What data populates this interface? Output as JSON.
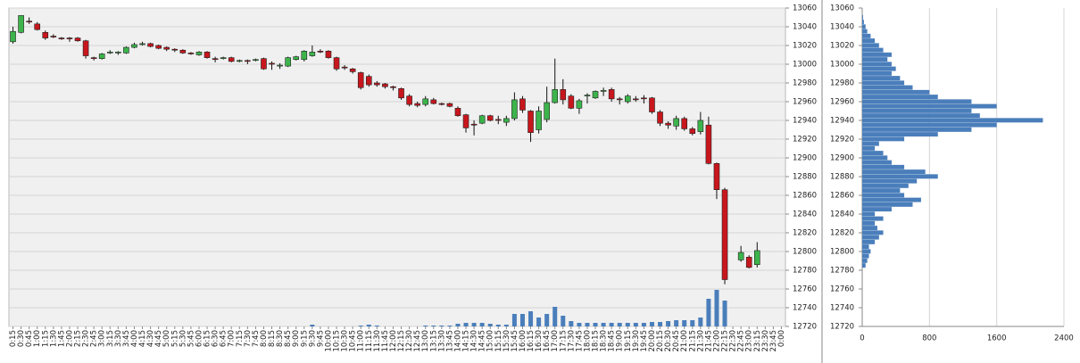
{
  "chart_data": [
    {
      "type": "candlestick",
      "categories": [
        "0:15",
        "0:30",
        "0:45",
        "1:00",
        "1:15",
        "1:30",
        "1:45",
        "2:00",
        "2:15",
        "2:30",
        "2:45",
        "3:00",
        "3:15",
        "3:30",
        "3:45",
        "4:00",
        "4:15",
        "4:30",
        "4:45",
        "5:00",
        "5:15",
        "5:30",
        "5:45",
        "6:00",
        "6:15",
        "6:30",
        "6:45",
        "7:00",
        "7:15",
        "7:30",
        "7:45",
        "8:00",
        "8:15",
        "8:30",
        "8:45",
        "9:00",
        "9:15",
        "9:30",
        "9:45",
        "10:00",
        "10:15",
        "10:30",
        "10:45",
        "11:00",
        "11:15",
        "11:30",
        "11:45",
        "12:00",
        "12:15",
        "12:30",
        "12:45",
        "13:00",
        "13:15",
        "13:30",
        "13:45",
        "14:00",
        "14:15",
        "14:30",
        "14:45",
        "15:00",
        "15:15",
        "15:30",
        "15:45",
        "16:00",
        "16:15",
        "16:30",
        "16:45",
        "17:00",
        "17:15",
        "17:30",
        "17:45",
        "18:00",
        "18:15",
        "18:30",
        "18:45",
        "19:00",
        "19:15",
        "19:30",
        "19:45",
        "20:00",
        "20:15",
        "20:30",
        "20:45",
        "21:00",
        "21:15",
        "21:30",
        "21:45",
        "22:00",
        "22:15",
        "22:30",
        "22:45",
        "23:00",
        "23:15",
        "23:30",
        "23:45",
        "0:00"
      ],
      "open": [
        13024,
        13034,
        13046,
        13043,
        13034,
        13030,
        13028,
        13028,
        13028,
        13025,
        13007,
        13006,
        13012,
        13012,
        13012,
        13018,
        13021,
        13022,
        13020,
        13018,
        13016,
        13015,
        13012,
        13010,
        13013,
        13006,
        13006,
        13007,
        13003,
        13004,
        13004,
        13006,
        13001,
        12998,
        12998,
        13005,
        13005,
        13009,
        13014,
        13014,
        13007,
        12997,
        12995,
        12991,
        12987,
        12980,
        12979,
        12976,
        12974,
        12966,
        12958,
        12957,
        12962,
        12958,
        12958,
        12953,
        12946,
        12936,
        12937,
        12945,
        12941,
        12938,
        12942,
        12963,
        12950,
        12930,
        12941,
        12959,
        12973,
        12966,
        12953,
        12966,
        12964,
        12971,
        12973,
        12963,
        12960,
        12963,
        12964,
        12964,
        12949,
        12937,
        12934,
        12942,
        12931,
        12928,
        12935,
        12894,
        12866,
        null,
        12791,
        12794,
        12786,
        null,
        null,
        null
      ],
      "high": [
        13040,
        13052,
        13050,
        13045,
        13036,
        13032,
        13029,
        13029,
        13029,
        13026,
        13008,
        13012,
        13015,
        13014,
        13019,
        13023,
        13024,
        13023,
        13021,
        13019,
        13017,
        13016,
        13013,
        13014,
        13014,
        13008,
        13008,
        13008,
        13005,
        13005,
        13006,
        13007,
        13003,
        13001,
        13008,
        13009,
        13015,
        13020,
        13016,
        13015,
        13008,
        12999,
        12996,
        12992,
        12989,
        12982,
        12980,
        12977,
        12975,
        12968,
        12960,
        12966,
        12964,
        12959,
        12959,
        12955,
        12947,
        12940,
        12946,
        12946,
        12945,
        12945,
        12970,
        12966,
        12951,
        12955,
        12976,
        13006,
        12984,
        12968,
        12963,
        12969,
        12972,
        12975,
        12975,
        12965,
        12968,
        12966,
        12967,
        12965,
        12951,
        12939,
        12945,
        12944,
        12933,
        12949,
        12944,
        12895,
        12868,
        null,
        12806,
        12796,
        12810,
        null,
        null,
        null
      ],
      "low": [
        13022,
        13033,
        13043,
        13036,
        13026,
        13028,
        13026,
        13024,
        13024,
        13006,
        13004,
        13005,
        13011,
        13010,
        13011,
        13017,
        13020,
        13018,
        13016,
        13014,
        13013,
        13011,
        13010,
        13009,
        13006,
        13002,
        13005,
        13002,
        13002,
        13000,
        13003,
        12994,
        12994,
        12995,
        12997,
        13004,
        13003,
        13008,
        13012,
        13006,
        12993,
        12994,
        12990,
        12973,
        12976,
        12976,
        12974,
        12972,
        12962,
        12955,
        12954,
        12955,
        12957,
        12956,
        12954,
        12944,
        12927,
        12924,
        12936,
        12939,
        12936,
        12934,
        12940,
        12948,
        12917,
        12926,
        12938,
        12958,
        12957,
        12952,
        12947,
        12958,
        12963,
        12966,
        12960,
        12957,
        12958,
        12960,
        12958,
        12947,
        12934,
        12931,
        12930,
        12929,
        12924,
        12925,
        12893,
        12856,
        12765,
        null,
        12789,
        12782,
        12783,
        null,
        null,
        null
      ],
      "close": [
        13035,
        13052,
        13045,
        13037,
        13028,
        13029,
        13027,
        13027,
        13025,
        13009,
        13006,
        13011,
        13013,
        13013,
        13018,
        13021,
        13022,
        13019,
        13017,
        13016,
        13015,
        13012,
        13011,
        13013,
        13007,
        13005,
        13007,
        13003,
        13004,
        13003,
        13005,
        12995,
        13000,
        12999,
        13007,
        13008,
        13014,
        13013,
        13013,
        13007,
        12995,
        12996,
        12992,
        12975,
        12978,
        12978,
        12976,
        12975,
        12964,
        12957,
        12956,
        12963,
        12958,
        12957,
        12955,
        12945,
        12932,
        12935,
        12945,
        12940,
        12940,
        12942,
        12962,
        12951,
        12927,
        12950,
        12959,
        12973,
        12962,
        12953,
        12961,
        12967,
        12971,
        12972,
        12963,
        12962,
        12966,
        12962,
        12963,
        12949,
        12937,
        12935,
        12942,
        12931,
        12926,
        12940,
        12894,
        12866,
        12770,
        null,
        12799,
        12783,
        12801,
        null,
        null,
        null
      ],
      "volume": [
        0,
        0,
        0,
        0,
        0,
        0,
        0,
        0,
        0,
        0,
        0,
        0,
        0,
        0,
        0,
        0,
        0,
        0,
        0,
        0,
        0,
        0,
        0,
        0,
        0,
        0,
        0,
        0,
        0,
        0,
        0,
        0,
        0,
        0,
        0,
        0,
        0,
        2,
        0,
        0,
        0,
        0,
        0,
        1,
        2,
        1,
        0,
        0,
        0,
        0,
        0,
        1,
        1,
        1,
        1,
        3,
        4,
        4,
        4,
        3,
        2,
        2,
        14,
        14,
        17,
        10,
        14,
        22,
        12,
        6,
        4,
        4,
        4,
        4,
        4,
        4,
        4,
        4,
        4,
        5,
        5,
        6,
        7,
        7,
        7,
        10,
        31,
        41,
        29,
        null,
        0,
        0,
        0,
        null,
        null,
        null
      ],
      "up_color": "#3cb44b",
      "down_color": "#c8161d",
      "volume_color": "#4a7ebb",
      "ylim": [
        12720,
        13060
      ],
      "yticks": [
        12720,
        12740,
        12760,
        12780,
        12800,
        12820,
        12840,
        12860,
        12880,
        12900,
        12920,
        12940,
        12960,
        12980,
        13000,
        13020,
        13040,
        13060
      ],
      "grid": true
    },
    {
      "type": "barh",
      "y": [
        12785,
        12790,
        12795,
        12800,
        12805,
        12810,
        12815,
        12820,
        12825,
        12830,
        12835,
        12840,
        12845,
        12850,
        12855,
        12860,
        12865,
        12870,
        12875,
        12880,
        12885,
        12890,
        12895,
        12900,
        12905,
        12910,
        12915,
        12920,
        12925,
        12930,
        12935,
        12940,
        12945,
        12950,
        12955,
        12960,
        12965,
        12970,
        12975,
        12980,
        12985,
        12990,
        12995,
        13000,
        13005,
        13010,
        13015,
        13020,
        13025,
        13030,
        13035,
        13040,
        13045,
        13050
      ],
      "values": [
        40,
        60,
        80,
        100,
        80,
        150,
        200,
        250,
        180,
        150,
        250,
        150,
        350,
        600,
        700,
        500,
        450,
        550,
        650,
        900,
        750,
        500,
        350,
        300,
        250,
        150,
        200,
        500,
        900,
        1300,
        1600,
        2150,
        1400,
        1300,
        1600,
        1300,
        900,
        800,
        600,
        500,
        450,
        350,
        400,
        350,
        300,
        350,
        250,
        200,
        150,
        100,
        60,
        40,
        20,
        10
      ],
      "color": "#4a7ebb",
      "xlim": [
        0,
        2400
      ],
      "xticks": [
        0,
        800,
        1600,
        2400
      ],
      "ylim": [
        12720,
        13060
      ],
      "yticks": [
        12720,
        12740,
        12760,
        12780,
        12800,
        12820,
        12840,
        12860,
        12880,
        12900,
        12920,
        12940,
        12960,
        12980,
        13000,
        13020,
        13040,
        13060
      ],
      "grid": true
    }
  ]
}
